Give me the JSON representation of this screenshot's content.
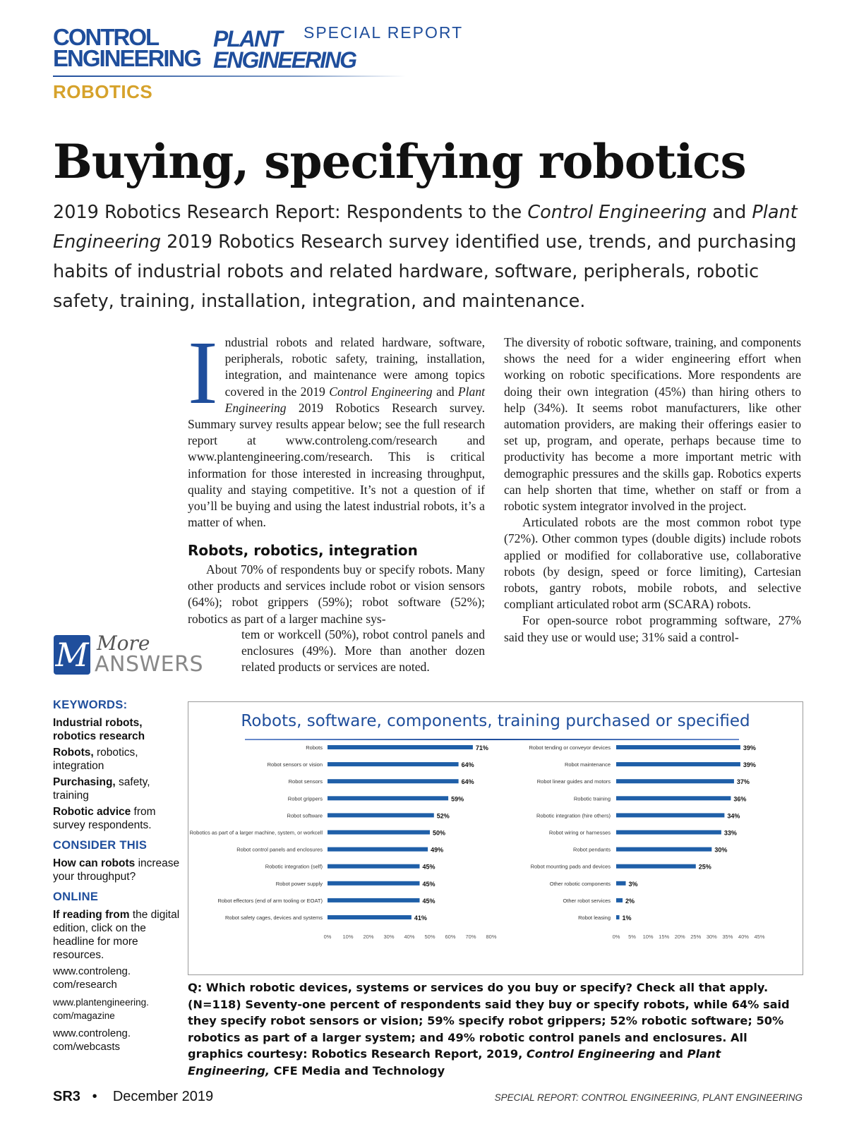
{
  "masthead": {
    "logo_control_line1": "CONTROL",
    "logo_control_line2": "ENGINEERING",
    "logo_plant_line1": "PLANT",
    "logo_plant_line2": "ENGINEERING",
    "special_report": "SPECIAL REPORT",
    "section": "ROBOTICS",
    "brand_color": "#1f4e9c",
    "section_color": "#d6a22b"
  },
  "headline": "Buying, specifying robotics",
  "deck": {
    "part1": "2019 Robotics Research Report: Respondents to the ",
    "pub1": "Control Engineering",
    "part2": " and ",
    "pub2": "Plant Engineering",
    "part3": " 2019 Robotics Research survey identified use, trends, and purchasing habits of industrial robots and related hardware, software, peripherals, robotic safety, training, installation, integration, and maintenance."
  },
  "body": {
    "dropcap": "I",
    "intro_a": "ndustrial robots and related hardware, software, peripherals, robotic safety, training, installation, integration, and maintenance were among topics covered in the 2019 ",
    "intro_pub1": "Control Engineering",
    "intro_b": " and ",
    "intro_pub2": "Plant Engineering",
    "intro_c": " 2019 Robotics Research survey. Summary survey results appear below; see the full research report at www.controleng.com/research and www.plantengineering.com/research. This is critical information for those interested in increasing throughput, quality and staying competitive. It’s not a question of if you’ll be buying and using the latest industrial robots, it’s a matter of when.",
    "subhead": "Robots, robotics, integration",
    "para2_a": "About 70% of respondents buy or specify robots. Many other products and services include robot or vision sensors (64%); robot grippers (59%); robot software (52%); robotics as part of a larger machine sys-",
    "para2_b": "tem or workcell (50%), robot control panels and enclosures (49%). More than another dozen related products or services are noted.",
    "right_p1": "The diversity of robotic software, training, and components shows the need for a wider engineering effort when working on robotic specifications. More respondents are doing their own integration (45%) than hiring others to help (34%). It seems robot manufacturers, like other automation providers, are making their offerings easier to set up, program, and operate, perhaps because time to productivity has become a more important metric with demographic pressures and the skills gap. Robotics experts can help shorten that time, whether on staff or from a robotic system integrator involved in the project.",
    "right_p2": "Articulated robots are the most common robot type (72%). Other common types (double digits) include robots applied or modified for collaborative use, collaborative robots (by design, speed or force limiting), Cartesian robots, gantry robots, mobile robots, and selective compliant articulated robot arm (SCARA) robots.",
    "right_p3": "For open-source robot programming software, 27% said they use or would use; 31% said a control-"
  },
  "badge": {
    "letter": "M",
    "more": "More",
    "answers": "ANSWERS"
  },
  "sidebar": {
    "keywords_head": "KEYWORDS:",
    "kw1_bold": "Industrial robots, robotics research",
    "kw2_bold": "Robots,",
    "kw2_rest": " robotics, integration",
    "kw3_bold": "Purchasing,",
    "kw3_rest": " safety, training",
    "kw4_bold": "Robotic advice",
    "kw4_rest": " from survey respondents.",
    "consider_head": "CONSIDER THIS",
    "consider_bold": "How can robots",
    "consider_rest": " increase your throughput?",
    "online_head": "ONLINE",
    "online_bold": "If reading from",
    "online_rest": " the digital edition, click on the headline for more resources.",
    "link1": "www.controleng. com/research",
    "link2": "www.plantengineering. com/magazine",
    "link3": "www.controleng. com/webcasts"
  },
  "chart_data": {
    "type": "bar",
    "title": "Robots, software, components, training purchased or specified",
    "orientation": "horizontal",
    "bar_color": "#1f5fa8",
    "panels": [
      {
        "categories": [
          "Robots",
          "Robot sensors or vision",
          "Robot sensors",
          "Robot grippers",
          "Robot software",
          "Robotics as part of a larger machine, system, or workcell",
          "Robot control panels and enclosures",
          "Robotic integration (self)",
          "Robot power supply",
          "Robot effectors (end of arm tooling or EOAT)",
          "Robot safety cages, devices and systems"
        ],
        "values": [
          71,
          64,
          64,
          59,
          52,
          50,
          49,
          45,
          45,
          45,
          41
        ],
        "value_labels": [
          "71%",
          "64%",
          "64%",
          "59%",
          "52%",
          "50%",
          "49%",
          "45%",
          "45%",
          "45%",
          "41%"
        ],
        "xlim": [
          0,
          80
        ],
        "ticks": [
          "0%",
          "10%",
          "20%",
          "30%",
          "40%",
          "50%",
          "60%",
          "70%",
          "80%"
        ]
      },
      {
        "categories": [
          "Robot tending or conveyor devices",
          "Robot maintenance",
          "Robot linear guides and motors",
          "Robotic training",
          "Robotic integration (hire others)",
          "Robot wiring or harnesses",
          "Robot pendants",
          "Robot mounting pads and devices",
          "Other robotic components",
          "Other robot services",
          "Robot leasing"
        ],
        "values": [
          39,
          39,
          37,
          36,
          34,
          33,
          30,
          25,
          3,
          2,
          1
        ],
        "value_labels": [
          "39%",
          "39%",
          "37%",
          "36%",
          "34%",
          "33%",
          "30%",
          "25%",
          "3%",
          "2%",
          "1%"
        ],
        "xlim": [
          0,
          45
        ],
        "ticks": [
          "0%",
          "5%",
          "10%",
          "15%",
          "20%",
          "25%",
          "30%",
          "35%",
          "40%",
          "45%"
        ]
      }
    ]
  },
  "caption": {
    "text_a": "Q: Which robotic devices, systems or services do you buy or specify? Check all that apply. (N=118) Seventy-one percent of respondents said they buy or specify robots, while 64% said they specify robot sensors or vision; 59% specify robot grippers; 52% robotic software; 50% robotics as part of a larger system; and 49% robotic control panels and enclosures. All graphics courtesy: Robotics Research Report, 2019, ",
    "pub1": "Control Engineering",
    "text_b": " and ",
    "pub2": "Plant Engineering,",
    "text_c": " CFE Media and Technology"
  },
  "footer": {
    "page": "SR3",
    "bullet": "•",
    "date": "December 2019",
    "right": "SPECIAL REPORT: CONTROL ENGINEERING, PLANT ENGINEERING"
  }
}
